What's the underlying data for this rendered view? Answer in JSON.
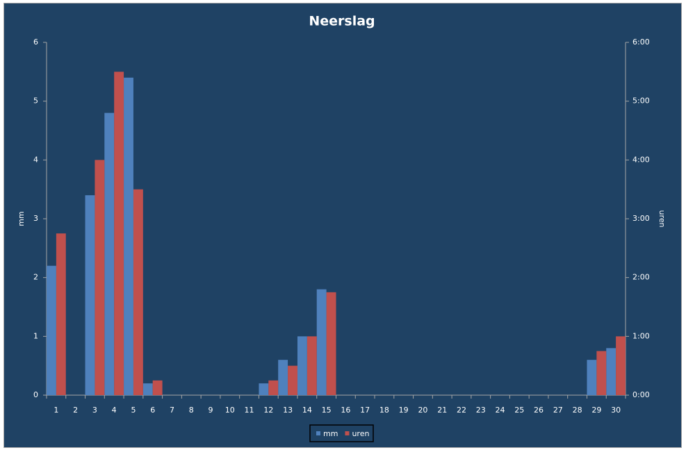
{
  "chart_data": {
    "type": "bar",
    "title": "Neerslag",
    "y_label": "mm",
    "y2_label": "uren",
    "categories": [
      "1",
      "2",
      "3",
      "4",
      "5",
      "6",
      "7",
      "8",
      "9",
      "10",
      "11",
      "12",
      "13",
      "14",
      "15",
      "16",
      "17",
      "18",
      "19",
      "20",
      "21",
      "22",
      "23",
      "24",
      "25",
      "26",
      "27",
      "28",
      "29",
      "30"
    ],
    "series": [
      {
        "name": "mm",
        "color": "#4f81bd",
        "values": [
          2.2,
          0,
          3.4,
          4.8,
          5.4,
          0.2,
          0,
          0,
          0,
          0,
          0,
          0.2,
          0.6,
          1.0,
          1.8,
          0,
          0,
          0,
          0,
          0,
          0,
          0,
          0,
          0,
          0,
          0,
          0,
          0,
          0.6,
          0.8
        ]
      },
      {
        "name": "uren",
        "color": "#c0504d",
        "axis": "y2",
        "values": [
          2.75,
          0,
          4.0,
          5.5,
          3.5,
          0.25,
          0,
          0,
          0,
          0,
          0,
          0.25,
          0.5,
          1.0,
          1.75,
          0,
          0,
          0,
          0,
          0,
          0,
          0,
          0,
          0,
          0,
          0,
          0,
          0,
          0.75,
          1.0
        ]
      }
    ],
    "ylim": [
      0,
      6
    ],
    "yticks": [
      0,
      1,
      2,
      3,
      4,
      5,
      6
    ],
    "y2lim": [
      0,
      6
    ],
    "y2ticks": [
      {
        "value": 0,
        "label": "0:00"
      },
      {
        "value": 1,
        "label": "1:00"
      },
      {
        "value": 2,
        "label": "2:00"
      },
      {
        "value": 3,
        "label": "3:00"
      },
      {
        "value": 4,
        "label": "4:00"
      },
      {
        "value": 5,
        "label": "5:00"
      },
      {
        "value": 6,
        "label": "6:00"
      }
    ],
    "grid": false,
    "legend": "bottom"
  }
}
